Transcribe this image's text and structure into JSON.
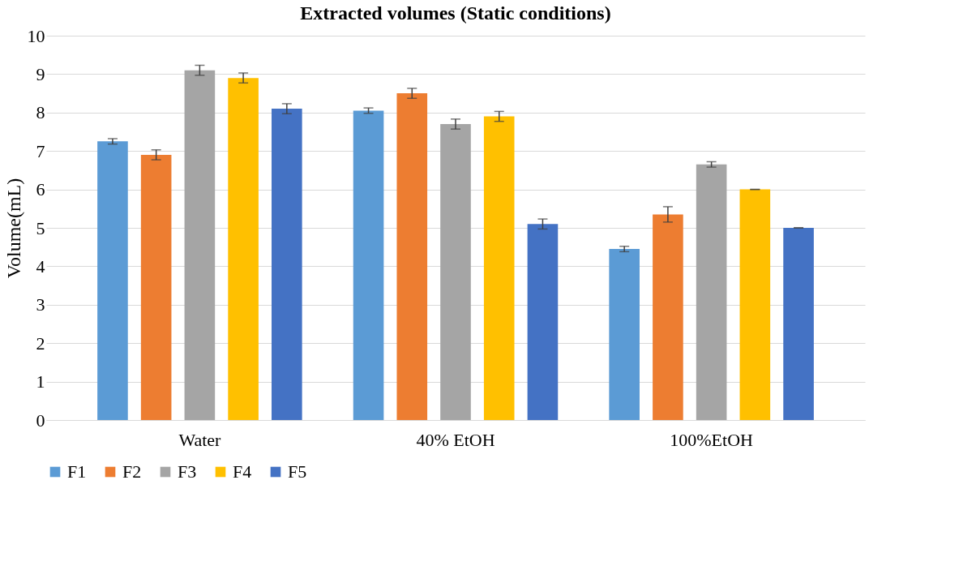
{
  "chart_data": {
    "type": "bar",
    "title": "Extracted volumes (Static conditions)",
    "ylabel": "Volume(mL)",
    "categories": [
      "Water",
      "40% EtOH",
      "100%EtOH"
    ],
    "series": [
      {
        "name": "F1",
        "color": "#5b9bd5",
        "values": [
          7.25,
          8.05,
          4.45
        ],
        "errors": [
          0.07,
          0.07,
          0.07
        ]
      },
      {
        "name": "F2",
        "color": "#ed7d31",
        "values": [
          6.9,
          8.5,
          5.35
        ],
        "errors": [
          0.13,
          0.13,
          0.2
        ]
      },
      {
        "name": "F3",
        "color": "#a5a5a5",
        "values": [
          9.1,
          7.7,
          6.65
        ],
        "errors": [
          0.13,
          0.13,
          0.07
        ]
      },
      {
        "name": "F4",
        "color": "#ffc000",
        "values": [
          8.9,
          7.9,
          6.0
        ],
        "errors": [
          0.13,
          0.13,
          0
        ]
      },
      {
        "name": "F5",
        "color": "#4472c4",
        "values": [
          8.1,
          5.1,
          5.0
        ],
        "errors": [
          0.13,
          0.13,
          0
        ]
      }
    ],
    "ylim": [
      0,
      10
    ],
    "yticks": [
      0,
      1,
      2,
      3,
      4,
      5,
      6,
      7,
      8,
      9,
      10
    ],
    "grid": "y",
    "legend": "bottom"
  }
}
